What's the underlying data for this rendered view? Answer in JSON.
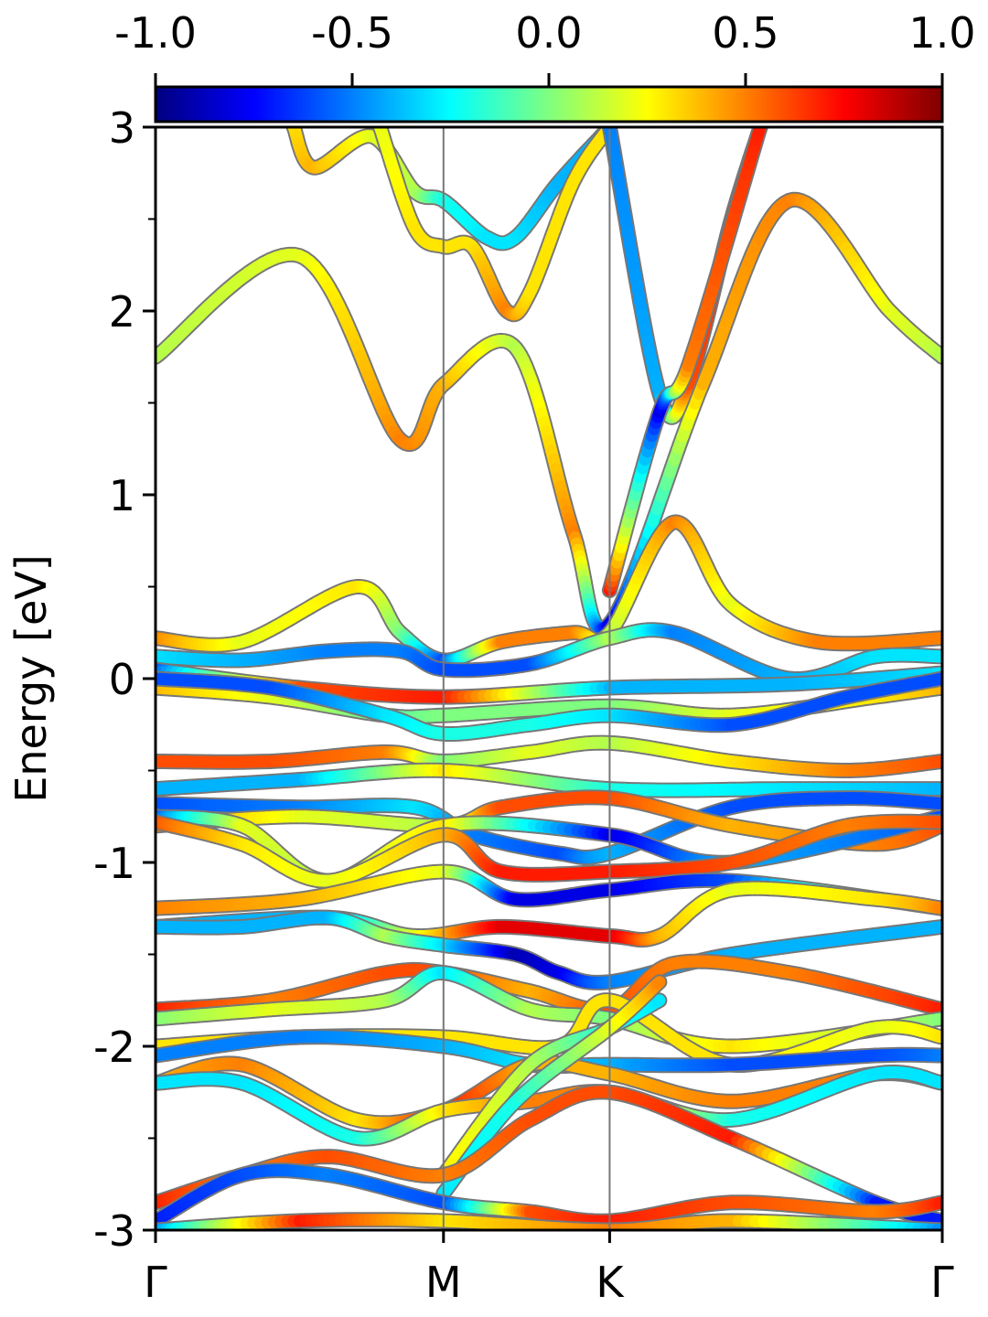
{
  "chart_data": {
    "type": "line",
    "title": "",
    "xlabel": "",
    "ylabel": "Energy [eV]",
    "ylim": [
      -3,
      3
    ],
    "y_ticks": [
      -3,
      -2,
      -1,
      0,
      1,
      2,
      3
    ],
    "y_tick_labels": [
      "-3",
      "-2",
      "-1",
      "0",
      "1",
      "2",
      "3"
    ],
    "y_minor_step": 0.5,
    "grid": false,
    "legend": "none",
    "k_path": {
      "labels": [
        "Γ",
        "M",
        "K",
        "Γ"
      ],
      "positions": [
        0,
        1,
        1.577,
        2.732
      ]
    },
    "colorbar": {
      "colormap": "jet",
      "range": [
        -1.0,
        1.0
      ],
      "ticks": [
        -1.0,
        -0.5,
        0.0,
        0.5,
        1.0
      ],
      "tick_labels": [
        "-1.0",
        "-0.5",
        "0.0",
        "0.5",
        "1.0"
      ],
      "placement": "top"
    },
    "series": [
      {
        "x": [
          0,
          0.5,
          0.85,
          1.0,
          1.25,
          1.45,
          1.577,
          1.9,
          2.2,
          2.55,
          2.732
        ],
        "y": [
          1.75,
          2.3,
          1.3,
          1.6,
          1.8,
          0.8,
          0.3,
          1.6,
          2.6,
          2.0,
          1.75
        ],
        "values": [
          0.1,
          0.2,
          0.5,
          0.4,
          0.1,
          0.5,
          -0.8,
          0.4,
          0.5,
          0.2,
          0.1
        ]
      },
      {
        "x": [
          0.48,
          0.55,
          0.75,
          0.9,
          1.0,
          1.15,
          1.25,
          1.4,
          1.577
        ],
        "y": [
          3.0,
          2.78,
          2.95,
          2.65,
          2.6,
          2.4,
          2.4,
          2.7,
          3.0
        ],
        "values": [
          0.3,
          0.4,
          0.2,
          0.1,
          -0.2,
          -0.3,
          -0.3,
          -0.4,
          -0.4
        ]
      },
      {
        "x": [
          0.78,
          0.9,
          1.0,
          1.1,
          1.22,
          1.3,
          1.45,
          1.577
        ],
        "y": [
          3.0,
          2.45,
          2.35,
          2.35,
          2.0,
          2.1,
          2.7,
          3.0
        ],
        "values": [
          0.2,
          0.3,
          0.3,
          0.3,
          0.5,
          0.3,
          0.3,
          0.3
        ]
      },
      {
        "x": [
          1.577,
          1.75,
          1.85,
          2.0,
          2.1
        ],
        "y": [
          3.0,
          1.55,
          1.6,
          2.5,
          3.0
        ],
        "values": [
          -0.5,
          -0.4,
          0.6,
          0.7,
          0.8
        ]
      },
      {
        "x": [
          1.577,
          1.75,
          1.85,
          2.1
        ],
        "y": [
          0.48,
          1.45,
          1.7,
          3.0
        ],
        "values": [
          0.7,
          -0.8,
          0.5,
          0.7
        ]
      },
      {
        "x": [
          0,
          0.3,
          0.7,
          0.85,
          1.0,
          1.2,
          1.45,
          1.577,
          1.8,
          2.0,
          2.3,
          2.732
        ],
        "y": [
          0.22,
          0.2,
          0.5,
          0.25,
          0.1,
          0.2,
          0.25,
          0.25,
          0.85,
          0.4,
          0.2,
          0.22
        ],
        "values": [
          0.5,
          0.2,
          0.3,
          0.0,
          -0.6,
          0.5,
          0.5,
          0.1,
          0.5,
          0.2,
          0.5,
          0.5
        ]
      },
      {
        "x": [
          0,
          0.3,
          0.6,
          0.85,
          1.0,
          1.3,
          1.577,
          1.8,
          2.2,
          2.5,
          2.732
        ],
        "y": [
          0.12,
          0.1,
          0.15,
          0.15,
          0.05,
          0.08,
          0.22,
          0.25,
          0.0,
          0.12,
          0.12
        ],
        "values": [
          -0.3,
          -0.4,
          -0.5,
          -0.5,
          -0.6,
          -0.6,
          0.1,
          -0.5,
          -0.4,
          -0.3,
          -0.3
        ]
      },
      {
        "x": [
          0,
          0.5,
          1.0,
          1.577,
          2.2,
          2.732
        ],
        "y": [
          0.05,
          -0.05,
          -0.1,
          -0.05,
          -0.03,
          0.03
        ],
        "values": [
          -0.6,
          0.6,
          0.7,
          -0.4,
          -0.4,
          -0.3
        ]
      },
      {
        "x": [
          0,
          0.4,
          0.8,
          1.0,
          1.577,
          2.0,
          2.5,
          2.732
        ],
        "y": [
          -0.05,
          -0.1,
          -0.2,
          -0.2,
          -0.15,
          -0.2,
          -0.1,
          -0.05
        ],
        "values": [
          0.4,
          0.2,
          -0.1,
          0.0,
          0.0,
          0.2,
          0.3,
          0.4
        ]
      },
      {
        "x": [
          0,
          0.4,
          0.8,
          1.0,
          1.3,
          1.577,
          2.0,
          2.4,
          2.732
        ],
        "y": [
          0.0,
          -0.05,
          -0.2,
          -0.3,
          -0.25,
          -0.2,
          -0.25,
          -0.1,
          0.0
        ],
        "values": [
          -0.6,
          -0.6,
          -0.3,
          -0.2,
          -0.2,
          -0.3,
          -0.6,
          -0.6,
          -0.6
        ]
      },
      {
        "x": [
          0,
          0.4,
          0.8,
          1.0,
          1.3,
          1.577,
          2.0,
          2.4,
          2.732
        ],
        "y": [
          -0.45,
          -0.45,
          -0.4,
          -0.45,
          -0.4,
          -0.35,
          -0.45,
          -0.5,
          -0.45
        ],
        "values": [
          0.6,
          0.6,
          0.5,
          0.0,
          0.2,
          0.1,
          0.3,
          0.5,
          0.6
        ]
      },
      {
        "x": [
          0,
          0.5,
          1.0,
          1.577,
          2.2,
          2.732
        ],
        "y": [
          -0.6,
          -0.55,
          -0.5,
          -0.6,
          -0.6,
          -0.6
        ],
        "values": [
          -0.4,
          -0.4,
          0.3,
          -0.2,
          -0.3,
          -0.4
        ]
      },
      {
        "x": [
          0,
          0.5,
          0.9,
          1.1,
          1.4,
          1.577,
          2.0,
          2.4,
          2.732
        ],
        "y": [
          -0.68,
          -0.7,
          -0.7,
          -0.85,
          -0.95,
          -0.95,
          -0.7,
          -0.65,
          -0.68
        ],
        "values": [
          -0.6,
          -0.5,
          -0.3,
          -0.5,
          -0.6,
          -0.4,
          -0.6,
          -0.6,
          -0.6
        ]
      },
      {
        "x": [
          0,
          0.5,
          1.0,
          1.2,
          1.577,
          2.0,
          2.5,
          2.732
        ],
        "y": [
          -0.8,
          -0.75,
          -0.8,
          -0.7,
          -0.65,
          -0.8,
          -0.9,
          -0.8
        ],
        "values": [
          0.5,
          0.2,
          0.1,
          0.6,
          0.6,
          0.4,
          0.5,
          0.6
        ]
      },
      {
        "x": [
          0,
          0.3,
          0.6,
          1.0,
          1.577,
          2.0,
          2.732
        ],
        "y": [
          -0.75,
          -0.8,
          -1.1,
          -0.8,
          -0.85,
          -1.0,
          -0.75
        ],
        "values": [
          -0.6,
          0.2,
          0.1,
          0.3,
          -0.8,
          -0.4,
          -0.6
        ]
      },
      {
        "x": [
          0,
          0.3,
          0.6,
          1.0,
          1.2,
          1.577,
          2.0,
          2.4,
          2.732
        ],
        "y": [
          -0.78,
          -0.9,
          -1.1,
          -0.85,
          -1.05,
          -1.05,
          -1.0,
          -0.8,
          -0.78
        ],
        "values": [
          0.6,
          0.3,
          0.2,
          0.4,
          0.7,
          0.7,
          0.6,
          0.5,
          0.6
        ]
      },
      {
        "x": [
          0,
          0.5,
          1.0,
          1.25,
          1.577,
          2.0,
          2.732
        ],
        "y": [
          -1.25,
          -1.2,
          -1.05,
          -1.2,
          -1.15,
          -1.1,
          -1.25
        ],
        "values": [
          0.5,
          0.4,
          0.2,
          -0.8,
          -0.8,
          -0.6,
          0.5
        ]
      },
      {
        "x": [
          0,
          0.6,
          0.9,
          1.2,
          1.577,
          1.75,
          2.0,
          2.5,
          2.732
        ],
        "y": [
          -1.35,
          -1.3,
          -1.4,
          -1.35,
          -1.4,
          -1.4,
          -1.15,
          -1.2,
          -1.25
        ],
        "values": [
          -0.4,
          -0.4,
          0.2,
          0.8,
          0.8,
          0.4,
          0.2,
          0.3,
          0.5
        ]
      },
      {
        "x": [
          0,
          0.3,
          0.6,
          0.8,
          1.0,
          1.25,
          1.4,
          1.577,
          2.0,
          2.732
        ],
        "y": [
          -1.35,
          -1.35,
          -1.3,
          -1.4,
          -1.45,
          -1.5,
          -1.6,
          -1.65,
          -1.5,
          -1.35
        ],
        "values": [
          -0.4,
          -0.4,
          -0.4,
          0.1,
          -0.3,
          -0.9,
          -0.8,
          -0.5,
          -0.4,
          -0.4
        ]
      },
      {
        "x": [
          0,
          0.4,
          0.8,
          1.0,
          1.3,
          1.577,
          1.8,
          2.2,
          2.732
        ],
        "y": [
          -1.8,
          -1.75,
          -1.6,
          -1.6,
          -1.7,
          -1.8,
          -1.55,
          -1.6,
          -1.8
        ],
        "values": [
          0.7,
          0.5,
          0.6,
          0.6,
          0.4,
          0.6,
          0.5,
          0.5,
          0.7
        ]
      },
      {
        "x": [
          0,
          0.4,
          0.8,
          1.0,
          1.3,
          1.577,
          2.0,
          2.732
        ],
        "y": [
          -1.85,
          -1.8,
          -1.75,
          -1.6,
          -1.8,
          -1.85,
          -2.0,
          -1.85
        ],
        "values": [
          0.0,
          0.2,
          0.1,
          -0.3,
          0.1,
          0.0,
          0.3,
          0.0
        ]
      },
      {
        "x": [
          0,
          0.5,
          1.0,
          1.4,
          1.577,
          2.0,
          2.5,
          2.732
        ],
        "y": [
          -2.0,
          -1.95,
          -1.95,
          -2.0,
          -1.75,
          -2.1,
          -1.9,
          -1.95
        ],
        "values": [
          0.3,
          0.3,
          0.3,
          0.3,
          0.3,
          0.3,
          0.2,
          0.3
        ]
      },
      {
        "x": [
          0,
          0.5,
          1.0,
          1.3,
          1.577,
          2.0,
          2.5,
          2.732
        ],
        "y": [
          -2.05,
          -1.95,
          -2.0,
          -2.1,
          -2.1,
          -2.1,
          -2.05,
          -2.05
        ],
        "values": [
          -0.5,
          -0.5,
          -0.4,
          -0.3,
          -0.4,
          -0.6,
          -0.6,
          -0.5
        ]
      },
      {
        "x": [
          0,
          0.3,
          0.7,
          1.0,
          1.3,
          1.577,
          2.0,
          2.5,
          2.732
        ],
        "y": [
          -2.2,
          -2.1,
          -2.4,
          -2.35,
          -2.1,
          -2.15,
          -2.3,
          -2.15,
          -2.2
        ],
        "values": [
          0.4,
          0.5,
          0.3,
          0.7,
          0.4,
          0.4,
          0.5,
          0.5,
          0.4
        ]
      },
      {
        "x": [
          0,
          0.3,
          0.7,
          1.0,
          1.3,
          1.577,
          2.0,
          2.5,
          2.732
        ],
        "y": [
          -2.2,
          -2.2,
          -2.5,
          -2.35,
          -2.3,
          -2.25,
          -2.4,
          -2.15,
          -2.2
        ],
        "values": [
          -0.3,
          -0.3,
          -0.2,
          0.3,
          0.5,
          0.5,
          -0.2,
          -0.3,
          -0.3
        ]
      },
      {
        "x": [
          1.0,
          1.3,
          1.577,
          1.75
        ],
        "y": [
          -2.7,
          -2.1,
          -1.9,
          -1.75
        ],
        "values": [
          0.3,
          0.1,
          -0.2,
          -0.3
        ]
      },
      {
        "x": [
          1.0,
          1.25,
          1.577,
          1.75
        ],
        "y": [
          -2.8,
          -2.3,
          -1.9,
          -1.65
        ],
        "values": [
          -0.3,
          -0.2,
          0.2,
          0.5
        ]
      },
      {
        "x": [
          0,
          0.3,
          0.6,
          1.0,
          1.3,
          1.577,
          2.0,
          2.5,
          2.732
        ],
        "y": [
          -2.85,
          -2.7,
          -2.6,
          -2.7,
          -2.4,
          -2.25,
          -2.5,
          -2.85,
          -2.95
        ],
        "values": [
          0.7,
          0.5,
          0.6,
          0.5,
          0.6,
          0.6,
          0.7,
          -0.7,
          -0.7
        ]
      },
      {
        "x": [
          0,
          0.3,
          0.6,
          1.0,
          1.3,
          1.577,
          2.0,
          2.5,
          2.732
        ],
        "y": [
          -2.95,
          -2.7,
          -2.7,
          -2.85,
          -2.9,
          -2.95,
          -2.85,
          -2.9,
          -2.85
        ],
        "values": [
          -0.7,
          -0.6,
          -0.5,
          -0.6,
          0.6,
          0.7,
          0.6,
          0.5,
          0.7
        ]
      },
      {
        "x": [
          0,
          0.5,
          1.0,
          1.577,
          2.0,
          2.732
        ],
        "y": [
          -3.0,
          -2.95,
          -2.95,
          -3.0,
          -2.95,
          -3.0
        ],
        "values": [
          -0.5,
          0.7,
          0.3,
          0.5,
          0.4,
          -0.5
        ]
      }
    ]
  }
}
